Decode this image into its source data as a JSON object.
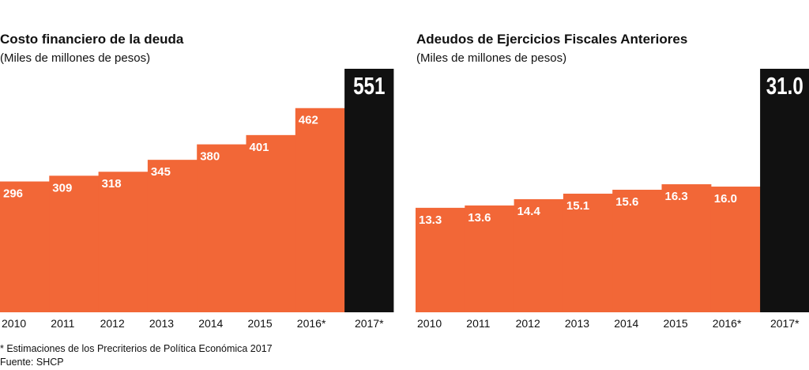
{
  "colors": {
    "bar": "#F26737",
    "highlight": "#111111"
  },
  "chart_data": [
    {
      "type": "bar",
      "title": "Costo financiero de la deuda",
      "subtitle": "(Miles de millones de pesos)",
      "categories": [
        "2010",
        "2011",
        "2012",
        "2013",
        "2014",
        "2015",
        "2016*",
        "2017*"
      ],
      "values": [
        296,
        309,
        318,
        345,
        380,
        401,
        462,
        551
      ],
      "value_labels": [
        "296",
        "309",
        "318",
        "345",
        "380",
        "401",
        "462",
        "551"
      ],
      "highlight_index": 7,
      "ylim": [
        0,
        551
      ],
      "grid": false
    },
    {
      "type": "bar",
      "title": "Adeudos de Ejercicios Fiscales Anteriores",
      "subtitle": "(Miles de millones de pesos)",
      "categories": [
        "2010",
        "2011",
        "2012",
        "2013",
        "2014",
        "2015",
        "2016*",
        "2017*"
      ],
      "values": [
        13.3,
        13.6,
        14.4,
        15.1,
        15.6,
        16.3,
        16.0,
        31.0
      ],
      "value_labels": [
        "13.3",
        "13.6",
        "14.4",
        "15.1",
        "15.6",
        "16.3",
        "16.0",
        "31.0"
      ],
      "highlight_index": 7,
      "ylim": [
        0,
        31.0
      ],
      "grid": false
    }
  ],
  "footnote": "* Estimaciones de los Precriterios de Política Económica 2017",
  "source": "Fuente: SHCP"
}
